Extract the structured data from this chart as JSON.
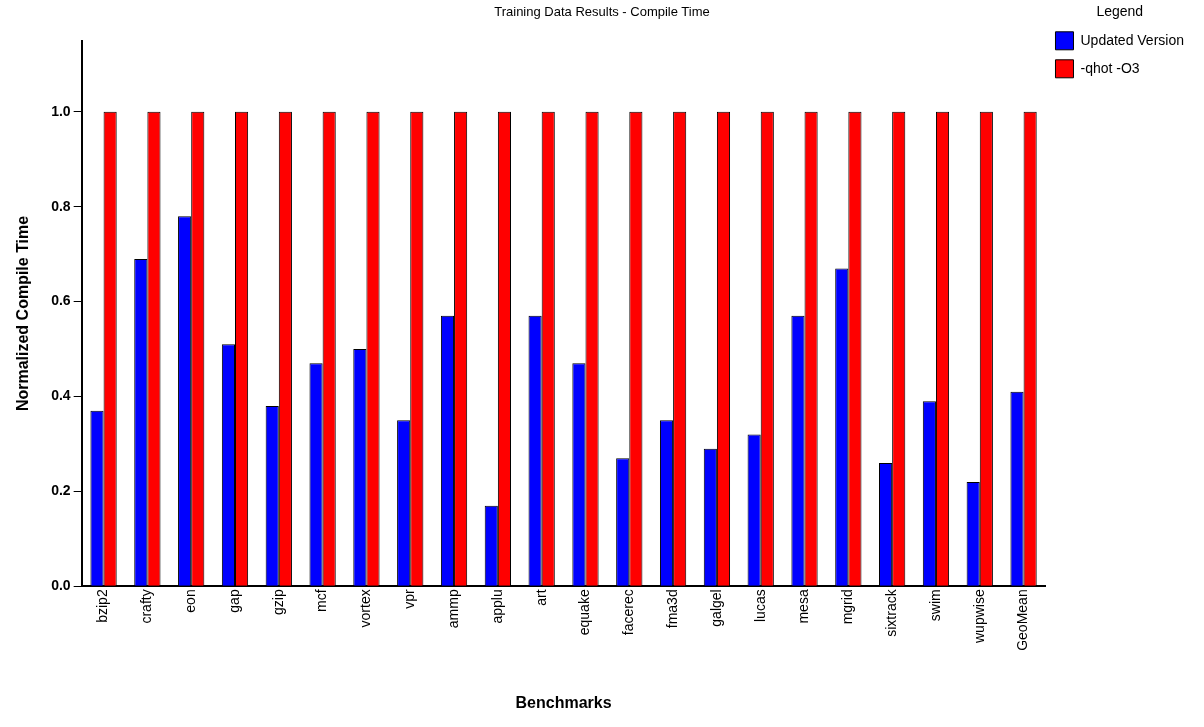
{
  "chart_data": {
    "type": "bar",
    "title": "Training Data Results - Compile Time",
    "xlabel": "Benchmarks",
    "ylabel": "Normalized Compile Time",
    "categories": [
      "bzip2",
      "crafty",
      "eon",
      "gap",
      "gzip",
      "mcf",
      "vortex",
      "vpr",
      "ammp",
      "applu",
      "art",
      "equake",
      "facerec",
      "fma3d",
      "galgel",
      "lucas",
      "mesa",
      "mgrid",
      "sixtrack",
      "swim",
      "wupwise",
      "GeoMean"
    ],
    "series": [
      {
        "name": "Updated Version",
        "color": "#0000ff",
        "values": [
          0.37,
          0.69,
          0.78,
          0.51,
          0.38,
          0.47,
          0.5,
          0.35,
          0.57,
          0.17,
          0.57,
          0.47,
          0.27,
          0.35,
          0.29,
          0.32,
          0.57,
          0.67,
          0.26,
          0.39,
          0.22,
          0.41
        ]
      },
      {
        "name": "-qhot -O3",
        "color": "#ff0000",
        "values": [
          1,
          1,
          1,
          1,
          1,
          1,
          1,
          1,
          1,
          1,
          1,
          1,
          1,
          1,
          1,
          1,
          1,
          1,
          1,
          1,
          1,
          1
        ]
      }
    ],
    "ylim": [
      0,
      1.15
    ],
    "yticks": [
      {
        "value": 0,
        "label": "0.0"
      },
      {
        "value": 0.2,
        "label": "0.2"
      },
      {
        "value": 0.4,
        "label": "0.4"
      },
      {
        "value": 0.6,
        "label": "0.6"
      },
      {
        "value": 0.8,
        "label": "0.8"
      },
      {
        "value": 1,
        "label": "1.0"
      }
    ],
    "legend": "top right",
    "legend_title": "Legend",
    "grid": false
  }
}
